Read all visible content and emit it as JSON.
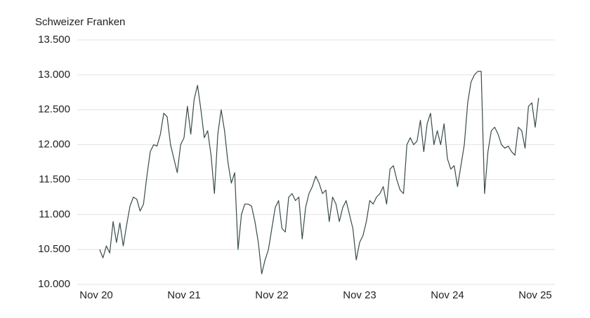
{
  "chart_data": {
    "type": "line",
    "y_label": "Schweizer Franken",
    "categories": [
      "Nov 20",
      null,
      null,
      null,
      null,
      null,
      null,
      null,
      null,
      null,
      null,
      null,
      null,
      null,
      null,
      null,
      null,
      null,
      null,
      null,
      null,
      null,
      null,
      null,
      null,
      null,
      "Nov 21",
      null,
      null,
      null,
      null,
      null,
      null,
      null,
      null,
      null,
      null,
      null,
      null,
      null,
      null,
      null,
      null,
      null,
      null,
      null,
      null,
      null,
      null,
      null,
      null,
      null,
      "Nov 22",
      null,
      null,
      null,
      null,
      null,
      null,
      null,
      null,
      null,
      null,
      null,
      null,
      null,
      null,
      null,
      null,
      null,
      null,
      null,
      null,
      null,
      null,
      null,
      null,
      null,
      "Nov 23",
      null,
      null,
      null,
      null,
      null,
      null,
      null,
      null,
      null,
      null,
      null,
      null,
      null,
      null,
      null,
      null,
      null,
      null,
      null,
      null,
      null,
      null,
      null,
      null,
      null,
      "Nov 24",
      null,
      null,
      null,
      null,
      null,
      null,
      null,
      null,
      null,
      null,
      null,
      null,
      null,
      null,
      null,
      null,
      null,
      null,
      null,
      null,
      null,
      null,
      null,
      null,
      null,
      "Nov 25",
      null
    ],
    "series": [
      {
        "name": "Schweizer Franken",
        "color": "#3a4b4b",
        "values": [
          null,
          10500,
          10380,
          10550,
          10450,
          10900,
          10600,
          10880,
          10550,
          10850,
          11120,
          11250,
          11220,
          11050,
          11150,
          11550,
          11900,
          12000,
          11980,
          12150,
          12450,
          12400,
          12000,
          11800,
          11600,
          12000,
          12100,
          12550,
          12150,
          12650,
          12850,
          12500,
          12100,
          12200,
          11850,
          11300,
          12150,
          12500,
          12200,
          11750,
          11450,
          11600,
          10500,
          11000,
          11150,
          11150,
          11120,
          10900,
          10600,
          10150,
          10350,
          10500,
          10800,
          11100,
          11200,
          10800,
          10750,
          11250,
          11300,
          11200,
          11250,
          10650,
          11100,
          11300,
          11400,
          11550,
          11450,
          11300,
          11350,
          10900,
          11250,
          11150,
          10900,
          11100,
          11200,
          11000,
          10800,
          10350,
          10600,
          10700,
          10900,
          11200,
          11150,
          11250,
          11300,
          11400,
          11150,
          11650,
          11700,
          11500,
          11350,
          11300,
          12000,
          12100,
          12000,
          12050,
          12350,
          11900,
          12300,
          12450,
          12000,
          12200,
          12000,
          12300,
          11800,
          11650,
          11700,
          11400,
          11700,
          12000,
          12600,
          12900,
          13000,
          13050,
          13050,
          11300,
          11900,
          12200,
          12250,
          12150,
          12000,
          11950,
          11980,
          11900,
          11850,
          12250,
          12200,
          11950,
          12550,
          12600,
          12250,
          12670
        ]
      }
    ],
    "ylim": [
      10000,
      13500
    ],
    "yticks": [
      {
        "value": 10000,
        "label": "10.000"
      },
      {
        "value": 10500,
        "label": "10.500"
      },
      {
        "value": 11000,
        "label": "11.000"
      },
      {
        "value": 11500,
        "label": "11.500"
      },
      {
        "value": 12000,
        "label": "12.000"
      },
      {
        "value": 12500,
        "label": "12.500"
      },
      {
        "value": 13000,
        "label": "13.000"
      },
      {
        "value": 13500,
        "label": "13.500"
      }
    ],
    "grid": true
  }
}
